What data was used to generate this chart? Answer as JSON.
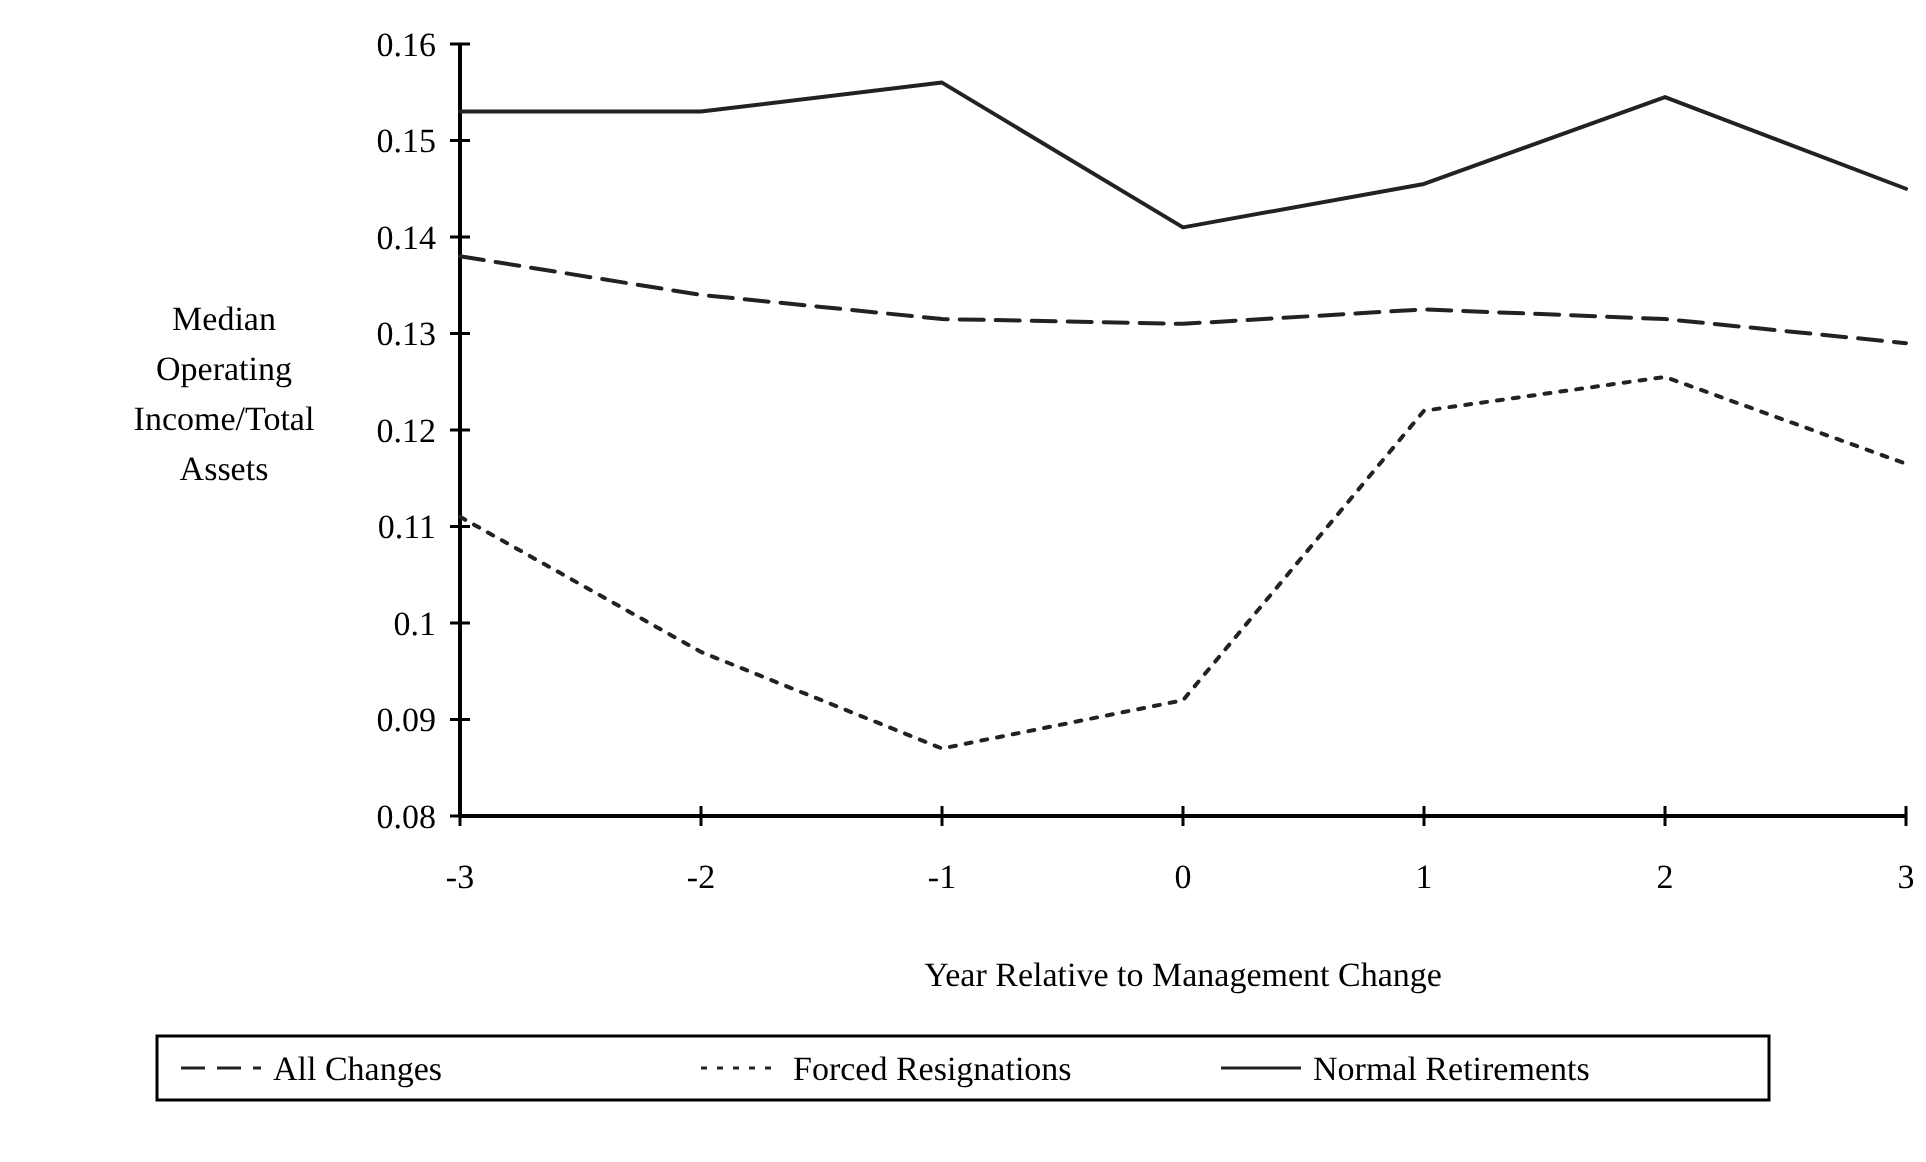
{
  "chart_data": {
    "type": "line",
    "xlabel": "Year Relative to Management Change",
    "ylabel": "Median Operating Income/Total Assets",
    "x": [
      -3,
      -2,
      -1,
      0,
      1,
      2,
      3
    ],
    "xlim": [
      -3,
      3
    ],
    "xticks": [
      -3,
      -2,
      -1,
      0,
      1,
      2,
      3
    ],
    "ylim": [
      0.08,
      0.16
    ],
    "yticks": [
      0.08,
      0.09,
      0.1,
      0.11,
      0.12,
      0.13,
      0.14,
      0.15,
      0.16
    ],
    "grid": false,
    "legend": "bottom",
    "series": [
      {
        "name": "All Changes",
        "color": "#222222",
        "line_style": "dashed",
        "values": [
          0.138,
          0.134,
          0.1315,
          0.131,
          0.1325,
          0.1315,
          0.129
        ]
      },
      {
        "name": "Forced Resignations",
        "color": "#222222",
        "line_style": "dotted",
        "values": [
          0.111,
          0.097,
          0.087,
          0.092,
          0.122,
          0.1255,
          0.1165
        ]
      },
      {
        "name": "Normal Retirements",
        "color": "#222222",
        "line_style": "solid",
        "values": [
          0.153,
          0.153,
          0.156,
          0.141,
          0.1455,
          0.1545,
          0.145
        ]
      }
    ]
  }
}
